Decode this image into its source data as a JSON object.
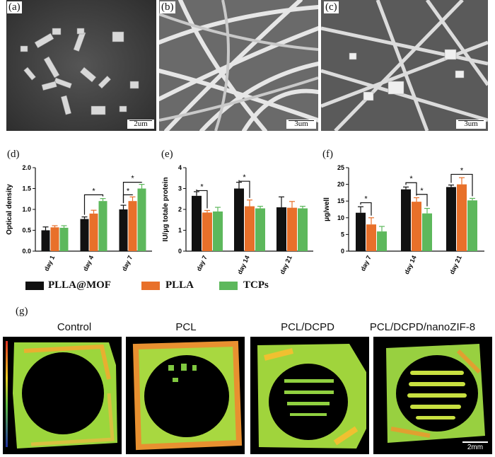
{
  "panels": {
    "a": {
      "letter": "(a)",
      "scale": "2um"
    },
    "b": {
      "letter": "(b)",
      "scale": "3um"
    },
    "c": {
      "letter": "(c)",
      "scale": "3um"
    },
    "d": {
      "letter": "(d)"
    },
    "e": {
      "letter": "(e)"
    },
    "f": {
      "letter": "(f)"
    },
    "g": {
      "letter": "(g)"
    }
  },
  "legend": [
    {
      "name": "PLLA@MOF",
      "color": "#111111"
    },
    {
      "name": "PLLA",
      "color": "#e8702a"
    },
    {
      "name": "TCPs",
      "color": "#5db85c"
    }
  ],
  "chart_data": [
    {
      "id": "d",
      "type": "bar",
      "ylabel": "Optical density",
      "ylim": [
        0.0,
        2.0
      ],
      "yticks": [
        "0.0",
        "0.5",
        "1.0",
        "1.5",
        "2.0"
      ],
      "tickvals": [
        0,
        0.5,
        1.0,
        1.5,
        2.0
      ],
      "categories": [
        "day 1",
        "day 4",
        "day 7"
      ],
      "series": [
        {
          "name": "PLLA@MOF",
          "values": [
            0.5,
            0.77,
            1.0
          ],
          "err": [
            0.08,
            0.05,
            0.1
          ]
        },
        {
          "name": "PLLA",
          "values": [
            0.57,
            0.9,
            1.2
          ],
          "err": [
            0.04,
            0.08,
            0.1
          ]
        },
        {
          "name": "TCPs",
          "values": [
            0.56,
            1.2,
            1.5
          ],
          "err": [
            0.05,
            0.06,
            0.1
          ]
        }
      ],
      "significance": [
        "*",
        "*",
        "*"
      ]
    },
    {
      "id": "e",
      "type": "bar",
      "ylabel": "IU/μg totale protein",
      "ylim": [
        0,
        4
      ],
      "yticks": [
        "0",
        "1",
        "2",
        "3",
        "4"
      ],
      "tickvals": [
        0,
        1,
        2,
        3,
        4
      ],
      "categories": [
        "day 7",
        "day 14",
        "day 21"
      ],
      "series": [
        {
          "name": "PLLA@MOF",
          "values": [
            2.65,
            3.0,
            2.1
          ],
          "err": [
            0.2,
            0.3,
            0.5
          ]
        },
        {
          "name": "PLLA",
          "values": [
            1.85,
            2.15,
            2.08
          ],
          "err": [
            0.1,
            0.3,
            0.3
          ]
        },
        {
          "name": "TCPs",
          "values": [
            1.9,
            2.05,
            2.05
          ],
          "err": [
            0.2,
            0.1,
            0.1
          ]
        }
      ],
      "significance": [
        "*",
        "*"
      ]
    },
    {
      "id": "f",
      "type": "bar",
      "ylabel": "μg/well",
      "ylim": [
        0,
        25
      ],
      "yticks": [
        "0",
        "5",
        "10",
        "15",
        "20",
        "25"
      ],
      "tickvals": [
        0,
        5,
        10,
        15,
        20,
        25
      ],
      "categories": [
        "day 7",
        "day 14",
        "day 21"
      ],
      "series": [
        {
          "name": "PLLA@MOF",
          "values": [
            11.5,
            18.5,
            19.2
          ],
          "err": [
            1.8,
            0.7,
            0.6
          ]
        },
        {
          "name": "PLLA",
          "values": [
            8.0,
            14.8,
            20.0
          ],
          "err": [
            2.0,
            1.2,
            2.0
          ]
        },
        {
          "name": "TCPs",
          "values": [
            5.9,
            11.3,
            15.2
          ],
          "err": [
            1.5,
            1.5,
            0.6
          ]
        }
      ],
      "significance": [
        "*",
        "*",
        "*",
        "*"
      ]
    }
  ],
  "ct_images": [
    {
      "title": "Control"
    },
    {
      "title": "PCL"
    },
    {
      "title": "PCL/DCPD"
    },
    {
      "title": "PCL/DCPD/nanoZIF-8",
      "scale": "2mm"
    }
  ],
  "colors": {
    "black": "#111111",
    "orange": "#e8702a",
    "green": "#5db85c",
    "bone": "#8fd23a"
  }
}
